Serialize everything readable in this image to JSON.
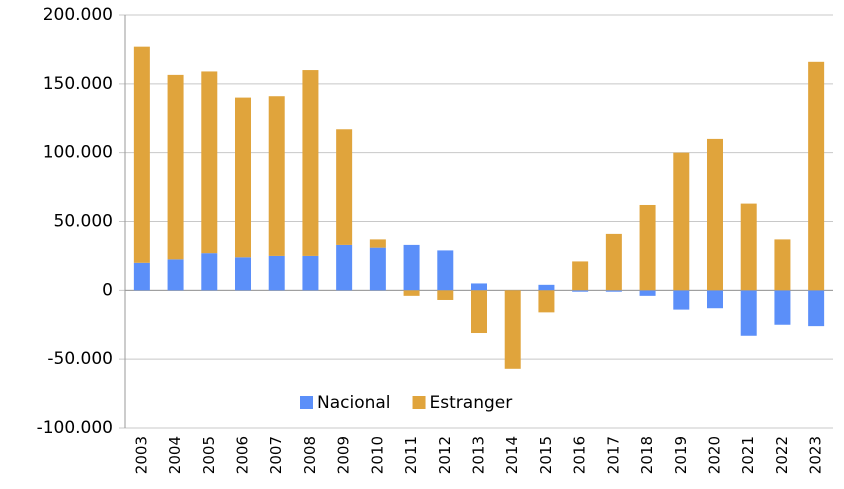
{
  "chart_data": {
    "type": "bar",
    "categories": [
      "2003",
      "2004",
      "2005",
      "2006",
      "2007",
      "2008",
      "2009",
      "2010",
      "2011",
      "2012",
      "2013",
      "2014",
      "2015",
      "2016",
      "2017",
      "2018",
      "2019",
      "2020",
      "2021",
      "2022",
      "2023"
    ],
    "series": [
      {
        "name": "Nacional",
        "color": "#5b8ff9",
        "values": [
          20000,
          22500,
          27000,
          24000,
          25000,
          25000,
          33000,
          31000,
          33000,
          29000,
          5000,
          0,
          4000,
          -1000,
          -1000,
          -4000,
          -14000,
          -13000,
          -33000,
          -25000,
          -26000
        ]
      },
      {
        "name": "Estranger",
        "color": "#e0a43c",
        "values": [
          157000,
          134000,
          132000,
          116000,
          116000,
          135000,
          84000,
          6000,
          -4000,
          -7000,
          -31000,
          -57000,
          -16000,
          21000,
          41000,
          62000,
          100000,
          110000,
          63000,
          37000,
          166000
        ]
      }
    ],
    "stacked": true,
    "ylim": [
      -100000,
      200000
    ],
    "yticks": [
      {
        "value": -100000,
        "label": "-100.000"
      },
      {
        "value": -50000,
        "label": "-50.000"
      },
      0,
      {
        "value": 50000,
        "label": "50.000"
      },
      {
        "value": 100000,
        "label": "100.000"
      },
      {
        "value": 150000,
        "label": "150.000"
      },
      {
        "value": 200000,
        "label": "200.000"
      }
    ],
    "grid": true
  }
}
